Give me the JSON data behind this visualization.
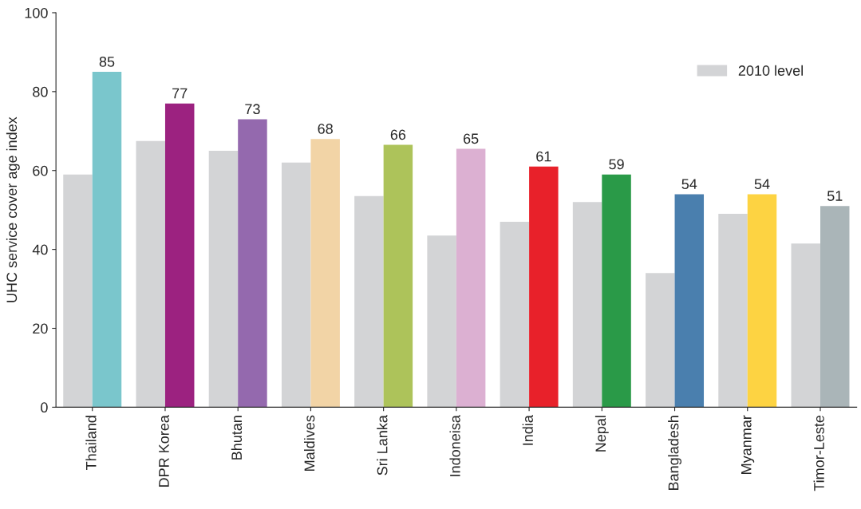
{
  "chart_data": {
    "type": "bar",
    "ylabel": "UHC service cover age index",
    "categories": [
      "Thailand",
      "DPR Korea",
      "Bhutan",
      "Maldives",
      "Sri Lanka",
      "Indoneisa",
      "India",
      "Nepal",
      "Bangladesh",
      "Myanmar",
      "Timor-Leste"
    ],
    "series": [
      {
        "name": "2010 level",
        "color": "#d3d4d6",
        "values": [
          59,
          67.5,
          65,
          62,
          53.5,
          43.5,
          47,
          52,
          34,
          49,
          41.5
        ]
      },
      {
        "colors": [
          "#7ac6cc",
          "#9c2280",
          "#9469ae",
          "#f2d4a6",
          "#adc35a",
          "#dcb0d2",
          "#e8212a",
          "#2a9a48",
          "#4a7fae",
          "#fdd342",
          "#aab5b8"
        ],
        "values": [
          85,
          77,
          73,
          68,
          66.5,
          65.5,
          61,
          59,
          54,
          54,
          51
        ],
        "value_labels": [
          "85",
          "77",
          "73",
          "68",
          "66",
          "65",
          "61",
          "59",
          "54",
          "54",
          "51"
        ]
      }
    ],
    "ylim": [
      0,
      100
    ],
    "yticks": [
      0,
      20,
      40,
      60,
      80,
      100
    ],
    "grid": false,
    "legend": "top right"
  }
}
